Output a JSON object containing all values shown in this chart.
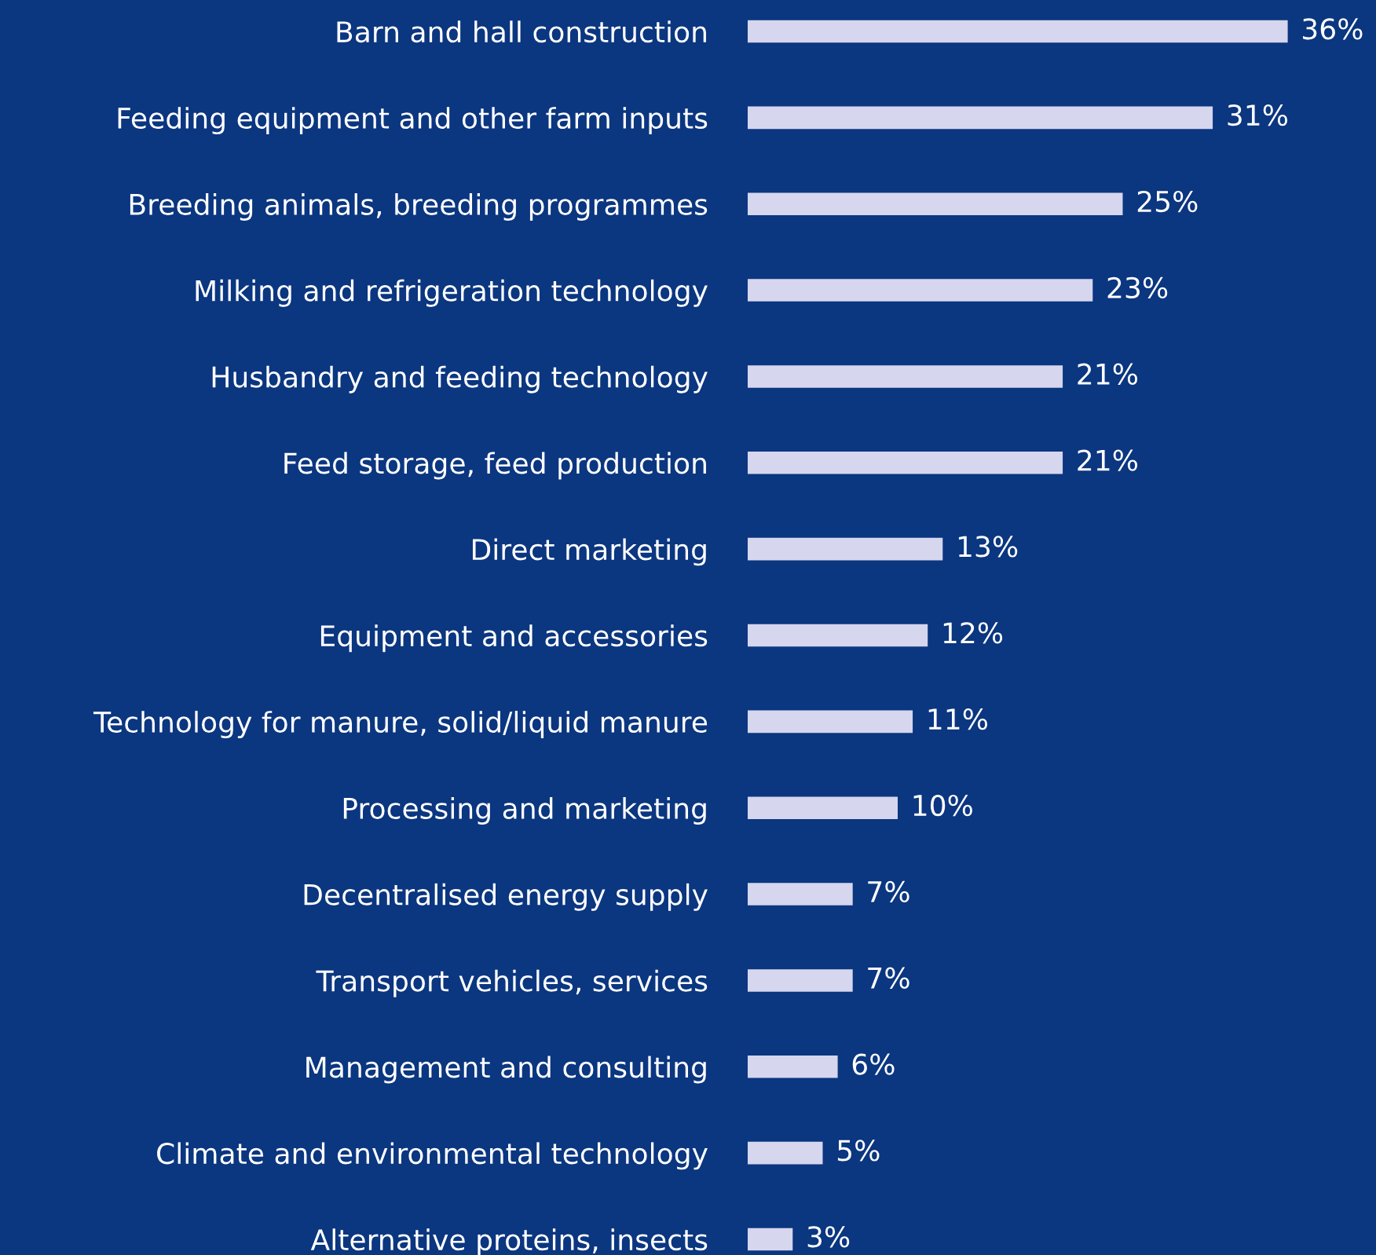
{
  "chart_data": {
    "type": "bar",
    "orientation": "horizontal",
    "categories": [
      "Barn and hall construction",
      "Feeding equipment and other farm inputs",
      "Breeding animals, breeding programmes",
      "Milking and refrigeration technology",
      "Husbandry and feeding technology",
      "Feed storage, feed production",
      "Direct marketing",
      "Equipment and accessories",
      "Technology for manure, solid/liquid manure",
      "Processing and marketing",
      "Decentralised energy supply",
      "Transport vehicles, services",
      "Management and consulting",
      "Climate and environmental technology",
      "Alternative proteins, insects"
    ],
    "values": [
      36,
      31,
      25,
      23,
      21,
      21,
      13,
      12,
      11,
      10,
      7,
      7,
      6,
      5,
      3
    ],
    "value_labels": [
      "36%",
      "31%",
      "25%",
      "23%",
      "21%",
      "21%",
      "13%",
      "12%",
      "11%",
      "10%",
      "7%",
      "7%",
      "6%",
      "5%",
      "3%"
    ],
    "color": "#d6d6ee"
  }
}
